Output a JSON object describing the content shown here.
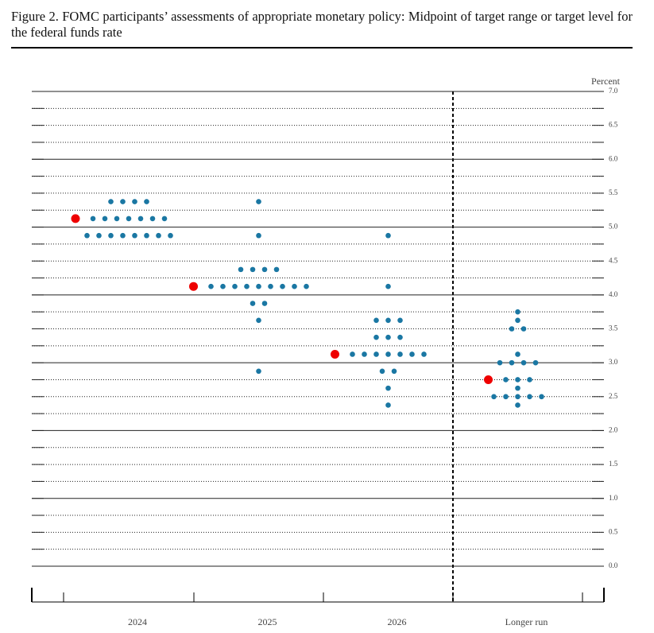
{
  "chart_data": {
    "type": "dot",
    "title": "Figure 2.  FOMC participants’ assessments of appropriate monetary policy: Midpoint of target range or target level for the federal funds rate",
    "y_label": "Percent",
    "categories": [
      "2024",
      "2025",
      "2026",
      "Longer run"
    ],
    "ylim": [
      0,
      7
    ],
    "yticks": [
      {
        "value": 0,
        "label": "0.0"
      },
      0.5,
      {
        "value": 1,
        "label": "1.0"
      },
      1.5,
      {
        "value": 2,
        "label": "2.0"
      },
      2.5,
      {
        "value": 3,
        "label": "3.0"
      },
      3.5,
      {
        "value": 4,
        "label": "4.0"
      },
      4.5,
      {
        "value": 5,
        "label": "5.0"
      },
      5.5,
      {
        "value": 6,
        "label": "6.0"
      },
      6.5,
      {
        "value": 7,
        "label": "7.0"
      }
    ],
    "series": [
      {
        "color": "#1a77a3",
        "values": [
          [
            5.375,
            5.375,
            5.375,
            5.375,
            5.125,
            5.125,
            5.125,
            5.125,
            5.125,
            5.125,
            5.125,
            4.875,
            4.875,
            4.875,
            4.875,
            4.875,
            4.875,
            4.875,
            4.875
          ],
          [
            5.375,
            4.875,
            4.375,
            4.375,
            4.375,
            4.375,
            4.125,
            4.125,
            4.125,
            4.125,
            4.125,
            4.125,
            4.125,
            4.125,
            4.125,
            3.875,
            3.875,
            3.625,
            2.875
          ],
          [
            4.875,
            4.125,
            3.625,
            3.625,
            3.625,
            3.375,
            3.375,
            3.375,
            3.125,
            3.125,
            3.125,
            3.125,
            3.125,
            3.125,
            3.125,
            2.875,
            2.875,
            2.625,
            2.375
          ],
          [
            3.75,
            3.625,
            3.5,
            3.5,
            3.125,
            3,
            3,
            3,
            3,
            2.75,
            2.75,
            2.75,
            2.625,
            2.5,
            2.5,
            2.5,
            2.5,
            2.5,
            2.375
          ]
        ]
      },
      {
        "color": "#ee0000",
        "values": [
          5.125,
          4.125,
          3.125,
          2.75
        ]
      }
    ]
  }
}
